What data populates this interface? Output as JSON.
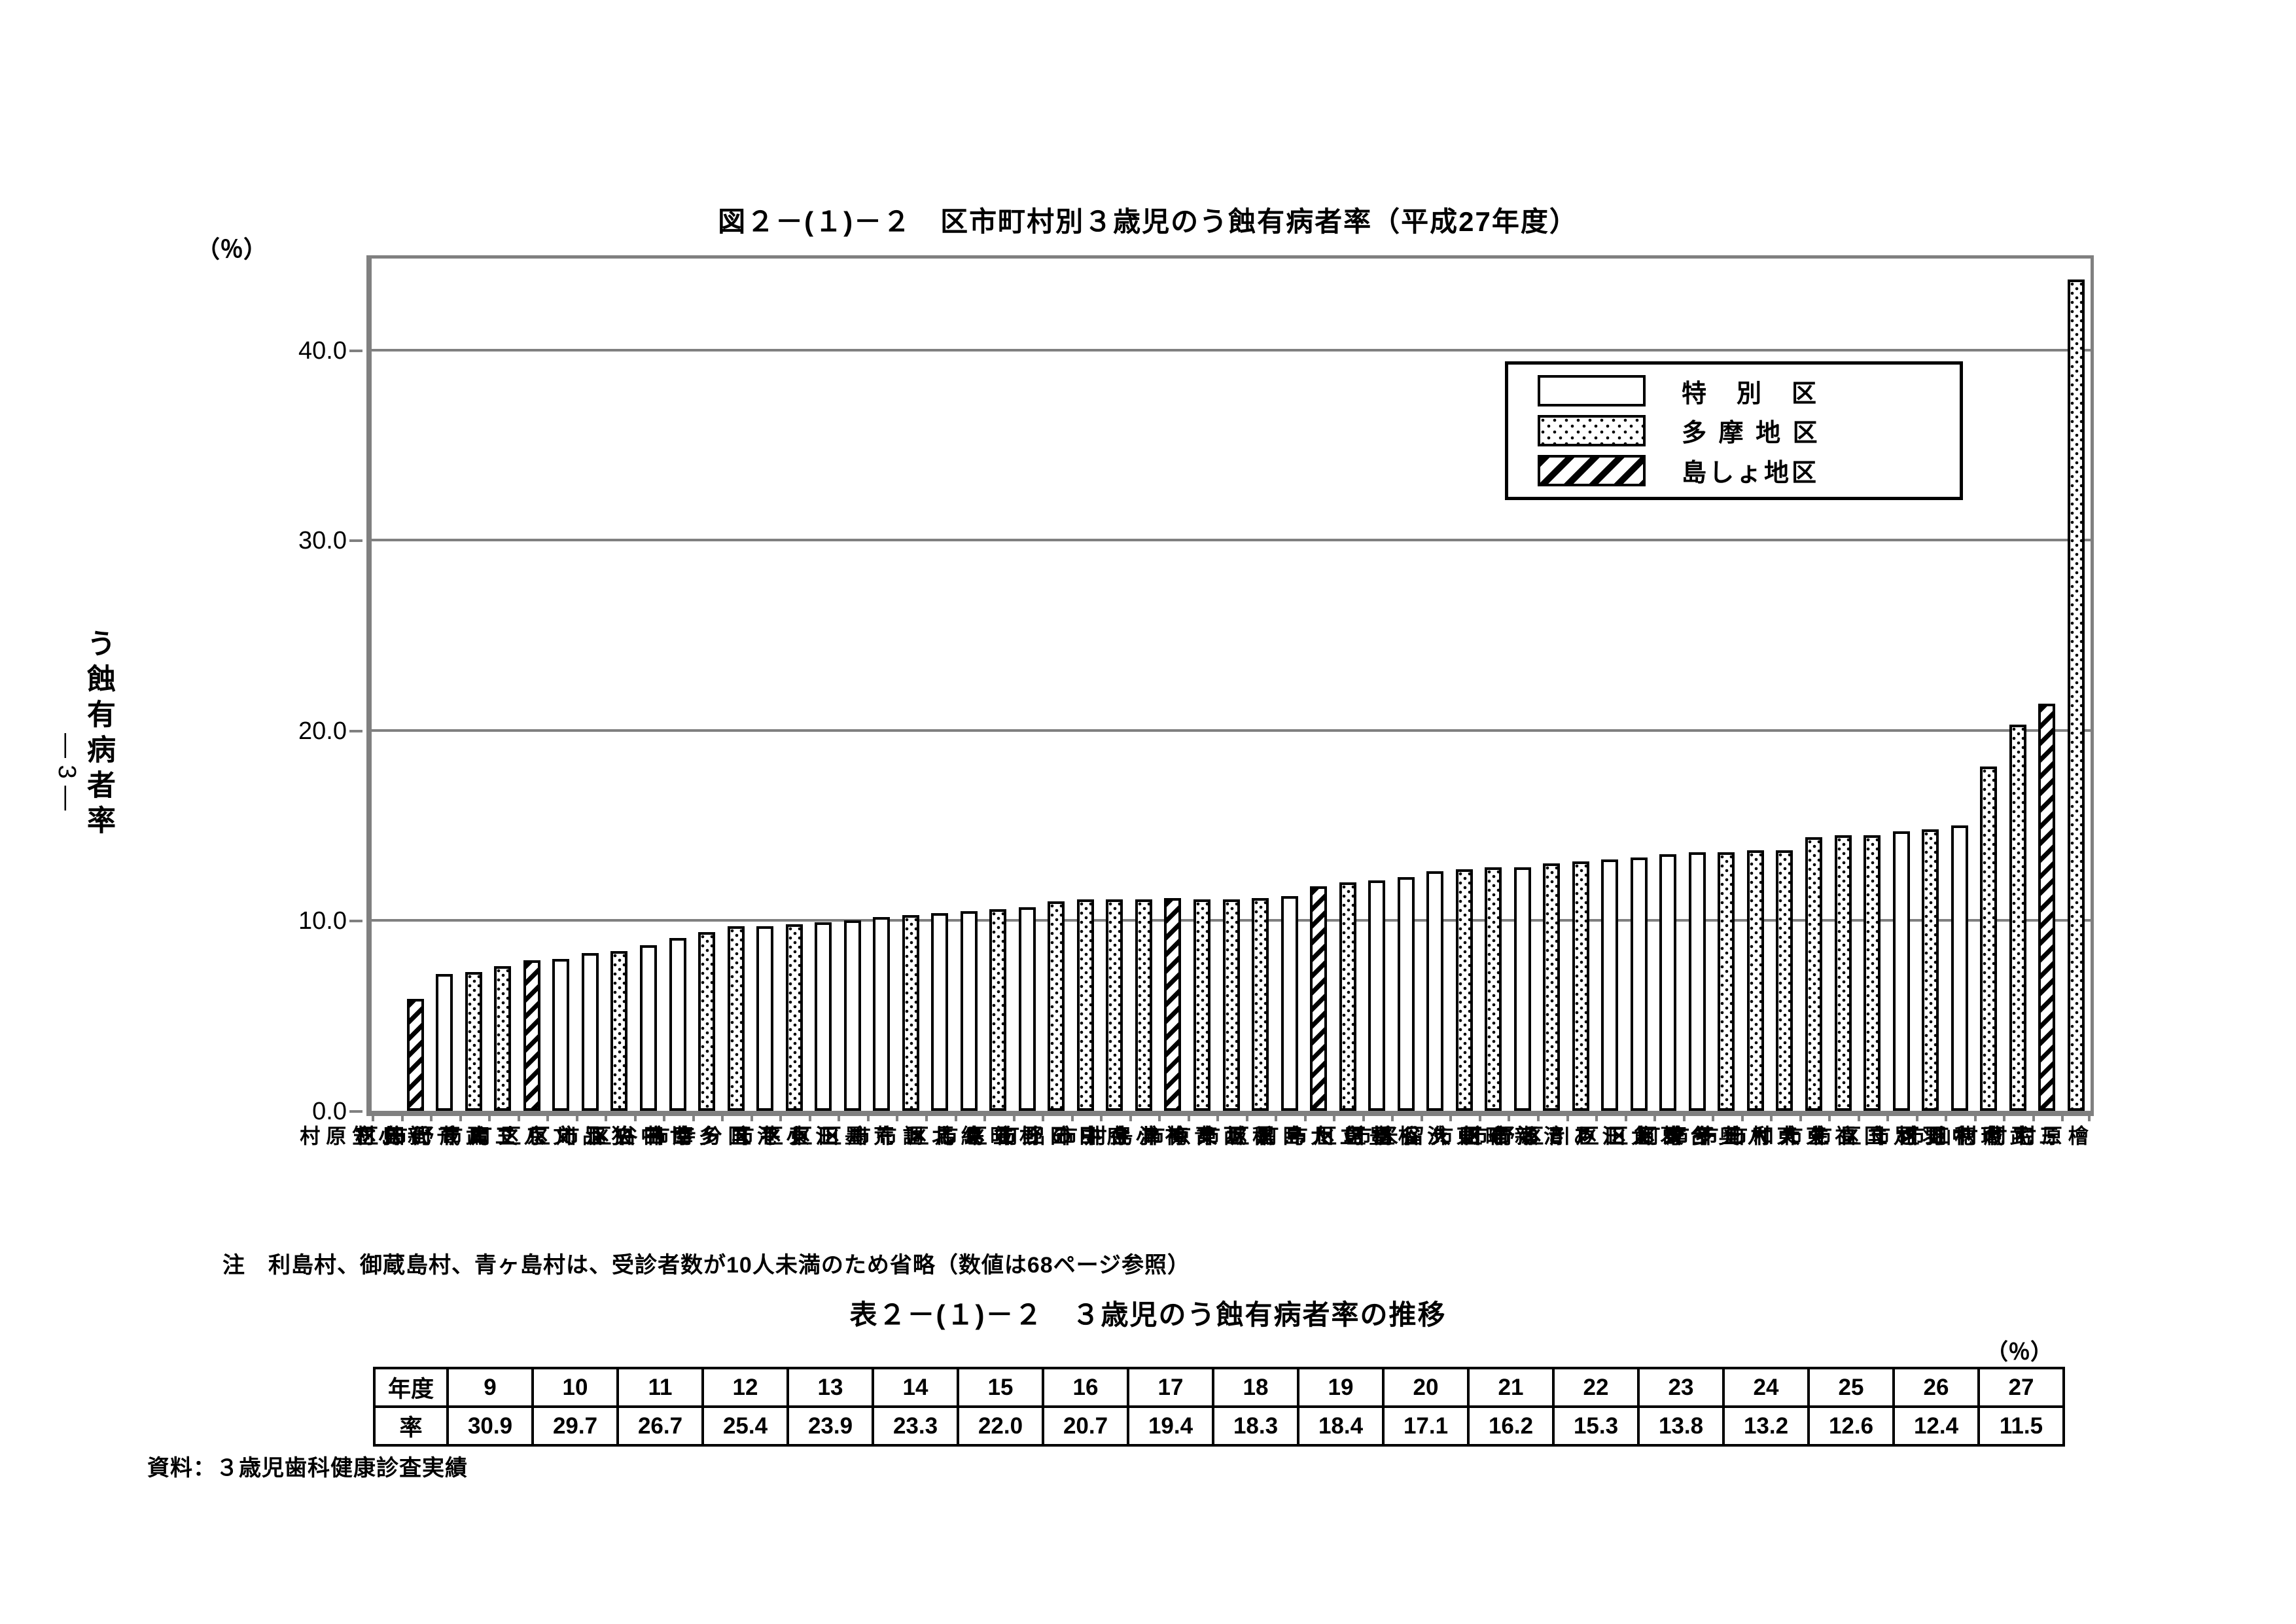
{
  "page": {
    "unit_label": "（％）",
    "page_number": "― 3 ―",
    "note": "注　利島村、御蔵島村、青ヶ島村は、受診者数が10人未満のため省略（数値は68ページ参照）",
    "source": "資料：３歳児歯科健康診査実績",
    "colors": {
      "axis_gray": "#808080",
      "ink": "#000000",
      "background": "#ffffff"
    }
  },
  "legend": {
    "items": [
      {
        "label": "特　別　区",
        "pattern": "plain"
      },
      {
        "label": "多 摩 地 区",
        "pattern": "dots"
      },
      {
        "label": "島しょ地区",
        "pattern": "hatch"
      }
    ]
  },
  "chart_data": {
    "type": "bar",
    "title": "図２－(１)－２　区市町村別３歳児のう蝕有病者率（平成27年度）",
    "ylabel": "う蝕有病者率",
    "unit": "%",
    "ylim": [
      0,
      44.8
    ],
    "yticks": [
      0,
      10,
      20,
      30,
      40
    ],
    "ytick_labels": [
      "0.0",
      "10.0",
      "20.0",
      "30.0",
      "40.0"
    ],
    "grid": true,
    "legend_position": "top-right",
    "groups": {
      "plain": "特別区",
      "dots": "多摩地区",
      "hatch": "島しょ地区"
    },
    "bars": [
      {
        "name": "小笠原村",
        "value": 0.0,
        "group": "hatch"
      },
      {
        "name": "新島村",
        "value": 5.9,
        "group": "hatch"
      },
      {
        "name": "千代田区",
        "value": 7.2,
        "group": "plain"
      },
      {
        "name": "武蔵野市",
        "value": 7.3,
        "group": "dots"
      },
      {
        "name": "三鷹市",
        "value": 7.6,
        "group": "dots"
      },
      {
        "name": "八丈町",
        "value": 7.9,
        "group": "hatch"
      },
      {
        "name": "文京区",
        "value": 8.0,
        "group": "plain"
      },
      {
        "name": "品川区",
        "value": 8.3,
        "group": "plain"
      },
      {
        "name": "狛江市",
        "value": 8.4,
        "group": "dots"
      },
      {
        "name": "中央区",
        "value": 8.7,
        "group": "plain"
      },
      {
        "name": "世田谷区",
        "value": 9.1,
        "group": "plain"
      },
      {
        "name": "多摩市",
        "value": 9.4,
        "group": "dots"
      },
      {
        "name": "国分寺市",
        "value": 9.7,
        "group": "dots"
      },
      {
        "name": "港区",
        "value": 9.7,
        "group": "plain"
      },
      {
        "name": "小平市",
        "value": 9.8,
        "group": "dots"
      },
      {
        "name": "江東区",
        "value": 9.9,
        "group": "plain"
      },
      {
        "name": "墨田区",
        "value": 10.0,
        "group": "plain"
      },
      {
        "name": "荒川区",
        "value": 10.2,
        "group": "plain"
      },
      {
        "name": "調布市",
        "value": 10.3,
        "group": "dots"
      },
      {
        "name": "北区",
        "value": 10.4,
        "group": "plain"
      },
      {
        "name": "練馬区",
        "value": 10.5,
        "group": "plain"
      },
      {
        "name": "昭島市",
        "value": 10.6,
        "group": "dots"
      },
      {
        "name": "杉並区",
        "value": 10.7,
        "group": "plain"
      },
      {
        "name": "日野市",
        "value": 11.0,
        "group": "dots"
      },
      {
        "name": "日の出町",
        "value": 11.1,
        "group": "dots"
      },
      {
        "name": "府中市",
        "value": 11.1,
        "group": "dots"
      },
      {
        "name": "小金井市",
        "value": 11.1,
        "group": "dots"
      },
      {
        "name": "神津島村",
        "value": 11.2,
        "group": "hatch"
      },
      {
        "name": "青梅市",
        "value": 11.1,
        "group": "dots"
      },
      {
        "name": "西東京市",
        "value": 11.1,
        "group": "dots"
      },
      {
        "name": "稲城市",
        "value": 11.2,
        "group": "dots"
      },
      {
        "name": "目黒区",
        "value": 11.3,
        "group": "plain"
      },
      {
        "name": "大島町",
        "value": 11.8,
        "group": "hatch"
      },
      {
        "name": "立川市",
        "value": 12.0,
        "group": "dots"
      },
      {
        "name": "豊島区",
        "value": 12.1,
        "group": "plain"
      },
      {
        "name": "板橋区",
        "value": 12.3,
        "group": "plain"
      },
      {
        "name": "渋谷区",
        "value": 12.6,
        "group": "plain"
      },
      {
        "name": "東久留米市",
        "value": 12.7,
        "group": "dots"
      },
      {
        "name": "町田市",
        "value": 12.8,
        "group": "dots"
      },
      {
        "name": "新宿区",
        "value": 12.8,
        "group": "plain"
      },
      {
        "name": "清瀬市",
        "value": 13.0,
        "group": "dots"
      },
      {
        "name": "あきる野市",
        "value": 13.1,
        "group": "dots"
      },
      {
        "name": "江戸川区",
        "value": 13.2,
        "group": "plain"
      },
      {
        "name": "大田区",
        "value": 13.3,
        "group": "plain"
      },
      {
        "name": "葛飾区",
        "value": 13.5,
        "group": "plain"
      },
      {
        "name": "台東区",
        "value": 13.6,
        "group": "plain"
      },
      {
        "name": "奥多摩町",
        "value": 13.6,
        "group": "dots"
      },
      {
        "name": "八王子市",
        "value": 13.7,
        "group": "dots"
      },
      {
        "name": "東村山市",
        "value": 13.7,
        "group": "dots"
      },
      {
        "name": "東大和市",
        "value": 14.4,
        "group": "dots"
      },
      {
        "name": "福生市",
        "value": 14.5,
        "group": "dots"
      },
      {
        "name": "国立市",
        "value": 14.5,
        "group": "dots"
      },
      {
        "name": "足立区",
        "value": 14.7,
        "group": "plain"
      },
      {
        "name": "羽村市",
        "value": 14.8,
        "group": "dots"
      },
      {
        "name": "中野区",
        "value": 15.0,
        "group": "plain"
      },
      {
        "name": "瑞穂町",
        "value": 18.1,
        "group": "dots"
      },
      {
        "name": "武蔵村山市",
        "value": 20.3,
        "group": "dots"
      },
      {
        "name": "三宅村",
        "value": 21.4,
        "group": "hatch"
      },
      {
        "name": "檜原村",
        "value": 43.7,
        "group": "dots"
      }
    ]
  },
  "trend_table": {
    "title": "表２－(１)－２　３歳児のう蝕有病者率の推移",
    "unit_label": "（％）",
    "row_headers": [
      "年度",
      "率"
    ],
    "years": [
      "9",
      "10",
      "11",
      "12",
      "13",
      "14",
      "15",
      "16",
      "17",
      "18",
      "19",
      "20",
      "21",
      "22",
      "23",
      "24",
      "25",
      "26",
      "27"
    ],
    "rates": [
      "30.9",
      "29.7",
      "26.7",
      "25.4",
      "23.9",
      "23.3",
      "22.0",
      "20.7",
      "19.4",
      "18.3",
      "18.4",
      "17.1",
      "16.2",
      "15.3",
      "13.8",
      "13.2",
      "12.6",
      "12.4",
      "11.5"
    ]
  }
}
